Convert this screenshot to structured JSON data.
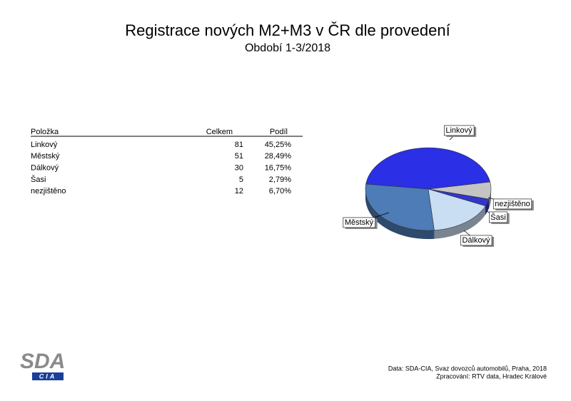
{
  "title": "Registrace nových M2+M3 v ČR dle provedení",
  "subtitle": "Období 1-3/2018",
  "table": {
    "columns": [
      "Položka",
      "Celkem",
      "Podíl"
    ],
    "rows": [
      [
        "Linkový",
        "81",
        "45,25%"
      ],
      [
        "Městský",
        "51",
        "28,49%"
      ],
      [
        "Dálkový",
        "30",
        "16,75%"
      ],
      [
        "Šasi",
        "5",
        "2,79%"
      ],
      [
        "nezjištěno",
        "12",
        "6,70%"
      ]
    ]
  },
  "chart_data": {
    "type": "pie",
    "categories": [
      "Linkový",
      "Městský",
      "Dálkový",
      "Šasi",
      "nezjištěno"
    ],
    "values": [
      81,
      51,
      30,
      5,
      12
    ],
    "colors": [
      "#2b2fe6",
      "#4d7cb6",
      "#c9def2",
      "#3236c8",
      "#c4c4c4"
    ]
  },
  "footer": {
    "logo": "SDA",
    "logo_sub": "CIA",
    "source": "Data: SDA-CIA, Svaz dovozců automobilů, Praha, 2018",
    "processing": "Zpracování: RTV data, Hradec Králové"
  }
}
